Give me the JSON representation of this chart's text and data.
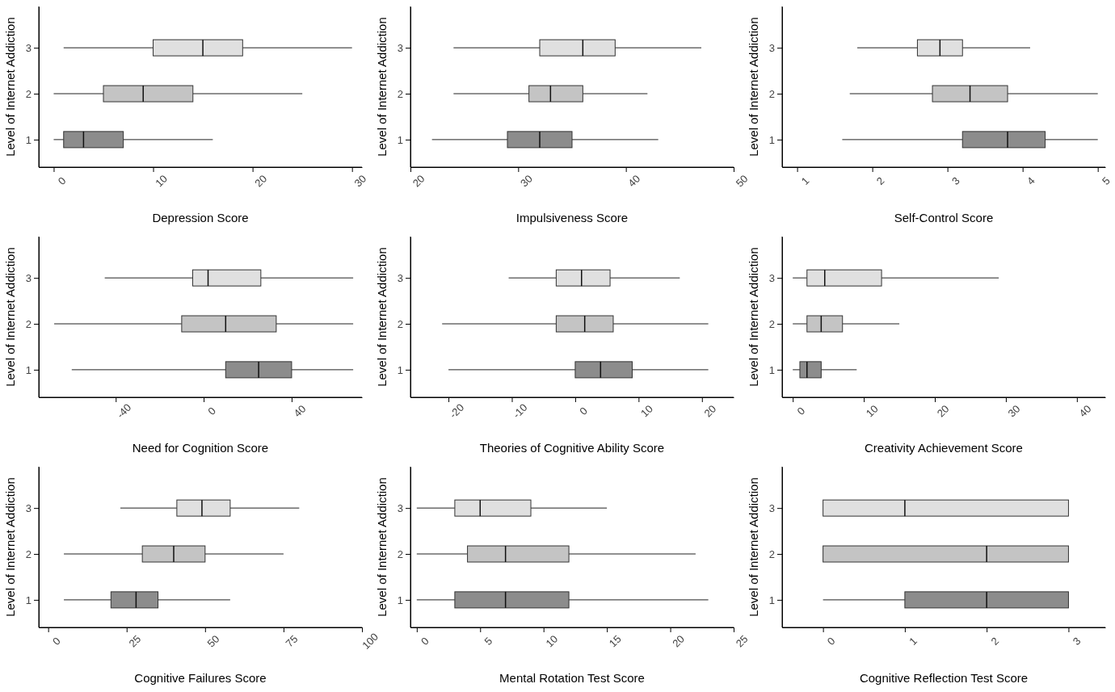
{
  "chart_data": [
    {
      "type": "box",
      "orientation": "horizontal",
      "xlabel": "Depression Score",
      "ylabel": "Level of Internet Addiction",
      "categories": [
        "3",
        "2",
        "1"
      ],
      "xlim": [
        -1.5,
        31
      ],
      "xticks": [
        0,
        10,
        20,
        30
      ],
      "colors": [
        "#e0e0e0",
        "#c4c4c4",
        "#8c8c8c"
      ],
      "grid": false,
      "boxes": [
        {
          "low": 1,
          "q1": 10,
          "median": 15,
          "q3": 19,
          "high": 30
        },
        {
          "low": 0,
          "q1": 5,
          "median": 9,
          "q3": 14,
          "high": 25
        },
        {
          "low": 0,
          "q1": 1,
          "median": 3,
          "q3": 7,
          "high": 16
        }
      ]
    },
    {
      "type": "box",
      "orientation": "horizontal",
      "xlabel": "Impulsiveness Score",
      "ylabel": "Level of Internet Addiction",
      "categories": [
        "3",
        "2",
        "1"
      ],
      "xlim": [
        20,
        50
      ],
      "xticks": [
        20,
        30,
        40,
        50
      ],
      "colors": [
        "#e0e0e0",
        "#c4c4c4",
        "#8c8c8c"
      ],
      "grid": false,
      "boxes": [
        {
          "low": 24,
          "q1": 32,
          "median": 36,
          "q3": 39,
          "high": 47
        },
        {
          "low": 24,
          "q1": 31,
          "median": 33,
          "q3": 36,
          "high": 42
        },
        {
          "low": 22,
          "q1": 29,
          "median": 32,
          "q3": 35,
          "high": 43
        }
      ]
    },
    {
      "type": "box",
      "orientation": "horizontal",
      "xlabel": "Self-Control Score",
      "ylabel": "Level of Internet Addiction",
      "categories": [
        "3",
        "2",
        "1"
      ],
      "xlim": [
        0.8,
        5.1
      ],
      "xticks": [
        1,
        2,
        3,
        4,
        5
      ],
      "colors": [
        "#e0e0e0",
        "#c4c4c4",
        "#8c8c8c"
      ],
      "grid": false,
      "boxes": [
        {
          "low": 1.8,
          "q1": 2.6,
          "median": 2.9,
          "q3": 3.2,
          "high": 4.1
        },
        {
          "low": 1.7,
          "q1": 2.8,
          "median": 3.3,
          "q3": 3.8,
          "high": 5
        },
        {
          "low": 1.6,
          "q1": 3.2,
          "median": 3.8,
          "q3": 4.3,
          "high": 5
        }
      ]
    },
    {
      "type": "box",
      "orientation": "horizontal",
      "xlabel": "Need for Cognition Score",
      "ylabel": "Level of Internet Addiction",
      "categories": [
        "3",
        "2",
        "1"
      ],
      "xlim": [
        -75,
        72
      ],
      "xticks": [
        -40,
        0,
        40
      ],
      "colors": [
        "#e0e0e0",
        "#c4c4c4",
        "#8c8c8c"
      ],
      "grid": false,
      "boxes": [
        {
          "low": -45,
          "q1": -5,
          "median": 2,
          "q3": 26,
          "high": 68
        },
        {
          "low": -68,
          "q1": -10,
          "median": 10,
          "q3": 33,
          "high": 68
        },
        {
          "low": -60,
          "q1": 10,
          "median": 25,
          "q3": 40,
          "high": 68
        }
      ]
    },
    {
      "type": "box",
      "orientation": "horizontal",
      "xlabel": "Theories of Cognitive Ability Score",
      "ylabel": "Level of Internet Addiction",
      "categories": [
        "3",
        "2",
        "1"
      ],
      "xlim": [
        -26,
        25
      ],
      "xticks": [
        -20,
        -10,
        0,
        10,
        20
      ],
      "colors": [
        "#e0e0e0",
        "#c4c4c4",
        "#8c8c8c"
      ],
      "grid": false,
      "boxes": [
        {
          "low": -10.5,
          "q1": -3,
          "median": 1,
          "q3": 5.5,
          "high": 16.5
        },
        {
          "low": -21,
          "q1": -3,
          "median": 1.5,
          "q3": 6,
          "high": 21
        },
        {
          "low": -20,
          "q1": 0,
          "median": 4,
          "q3": 9,
          "high": 21
        }
      ]
    },
    {
      "type": "box",
      "orientation": "horizontal",
      "xlabel": "Creativity Achievement Score",
      "ylabel": "Level of Internet Addiction",
      "categories": [
        "3",
        "2",
        "1"
      ],
      "xlim": [
        -1.5,
        44
      ],
      "xticks": [
        0,
        10,
        20,
        30,
        40
      ],
      "colors": [
        "#e0e0e0",
        "#c4c4c4",
        "#8c8c8c"
      ],
      "grid": false,
      "boxes": [
        {
          "low": 0,
          "q1": 2,
          "median": 4.5,
          "q3": 12.5,
          "high": 29
        },
        {
          "low": 0,
          "q1": 2,
          "median": 4,
          "q3": 7,
          "high": 15
        },
        {
          "low": 0,
          "q1": 1,
          "median": 2,
          "q3": 4,
          "high": 9
        }
      ]
    },
    {
      "type": "box",
      "orientation": "horizontal",
      "xlabel": "Cognitive Failures Score",
      "ylabel": "Level of Internet Addiction",
      "categories": [
        "3",
        "2",
        "1"
      ],
      "xlim": [
        -3,
        100
      ],
      "xticks": [
        0,
        25,
        50,
        75,
        100
      ],
      "colors": [
        "#e0e0e0",
        "#c4c4c4",
        "#8c8c8c"
      ],
      "grid": false,
      "boxes": [
        {
          "low": 23,
          "q1": 41,
          "median": 49,
          "q3": 58,
          "high": 80
        },
        {
          "low": 5,
          "q1": 30,
          "median": 40,
          "q3": 50,
          "high": 75
        },
        {
          "low": 5,
          "q1": 20,
          "median": 28,
          "q3": 35,
          "high": 58
        }
      ]
    },
    {
      "type": "box",
      "orientation": "horizontal",
      "xlabel": "Mental Rotation Test Score",
      "ylabel": "Level of Internet Addiction",
      "categories": [
        "3",
        "2",
        "1"
      ],
      "xlim": [
        -0.5,
        25
      ],
      "xticks": [
        0,
        5,
        10,
        15,
        20,
        25
      ],
      "colors": [
        "#e0e0e0",
        "#c4c4c4",
        "#8c8c8c"
      ],
      "grid": false,
      "boxes": [
        {
          "low": 0,
          "q1": 3,
          "median": 5,
          "q3": 9,
          "high": 15
        },
        {
          "low": 0,
          "q1": 4,
          "median": 7,
          "q3": 12,
          "high": 22
        },
        {
          "low": 0,
          "q1": 3,
          "median": 7,
          "q3": 12,
          "high": 23
        }
      ]
    },
    {
      "type": "box",
      "orientation": "horizontal",
      "xlabel": "Cognitive Reflection Test Score",
      "ylabel": "Level of Internet Addiction",
      "categories": [
        "3",
        "2",
        "1"
      ],
      "xlim": [
        -0.5,
        3.45
      ],
      "xticks": [
        0,
        1,
        2,
        3
      ],
      "colors": [
        "#e0e0e0",
        "#c4c4c4",
        "#8c8c8c"
      ],
      "grid": false,
      "boxes": [
        {
          "low": 0,
          "q1": 0,
          "median": 1,
          "q3": 3,
          "high": 3
        },
        {
          "low": 0,
          "q1": 0,
          "median": 2,
          "q3": 3,
          "high": 3
        },
        {
          "low": 0,
          "q1": 1,
          "median": 2,
          "q3": 3,
          "high": 3
        }
      ]
    }
  ]
}
